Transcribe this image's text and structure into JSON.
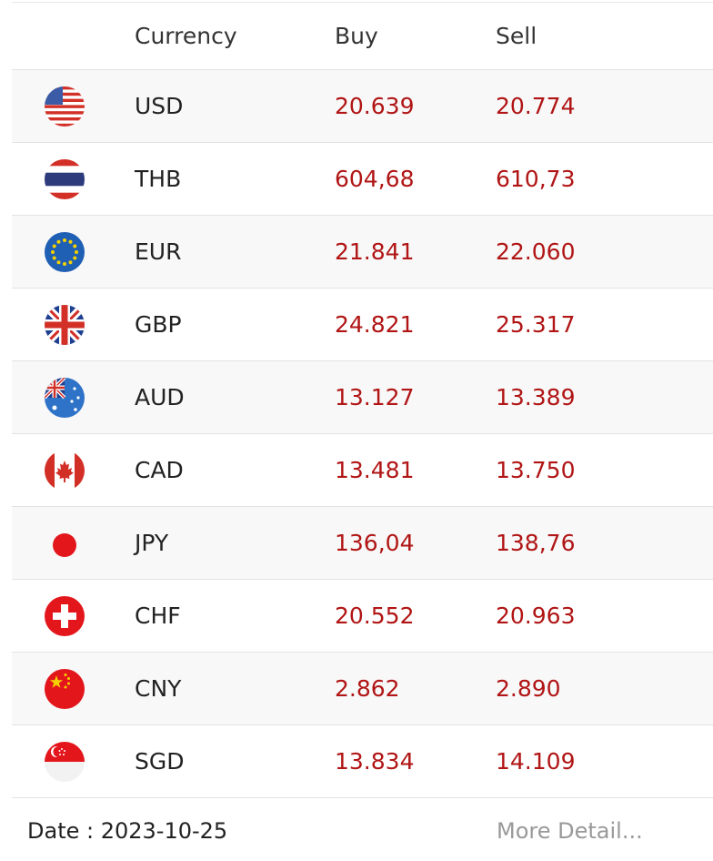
{
  "header": {
    "col_currency": "Currency",
    "col_buy": "Buy",
    "col_sell": "Sell"
  },
  "rows": [
    {
      "code": "USD",
      "buy": "20.639",
      "sell": "20.774",
      "flag": "us-flag-icon"
    },
    {
      "code": "THB",
      "buy": "604,68",
      "sell": "610,73",
      "flag": "thailand-flag-icon"
    },
    {
      "code": "EUR",
      "buy": "21.841",
      "sell": "22.060",
      "flag": "eu-flag-icon"
    },
    {
      "code": "GBP",
      "buy": "24.821",
      "sell": "25.317",
      "flag": "uk-flag-icon"
    },
    {
      "code": "AUD",
      "buy": "13.127",
      "sell": "13.389",
      "flag": "australia-flag-icon"
    },
    {
      "code": "CAD",
      "buy": "13.481",
      "sell": "13.750",
      "flag": "canada-flag-icon"
    },
    {
      "code": "JPY",
      "buy": "136,04",
      "sell": "138,76",
      "flag": "japan-flag-icon"
    },
    {
      "code": "CHF",
      "buy": "20.552",
      "sell": "20.963",
      "flag": "switzerland-flag-icon"
    },
    {
      "code": "CNY",
      "buy": "2.862",
      "sell": "2.890",
      "flag": "china-flag-icon"
    },
    {
      "code": "SGD",
      "buy": "13.834",
      "sell": "14.109",
      "flag": "singapore-flag-icon"
    }
  ],
  "footer": {
    "date": "Date : 2023-10-25",
    "more_link": "More Detail..."
  },
  "colors": {
    "rate_text": "#b11515",
    "row_alt": "#f8f8f8",
    "border": "#e3e3e3",
    "muted_link": "#999999"
  }
}
